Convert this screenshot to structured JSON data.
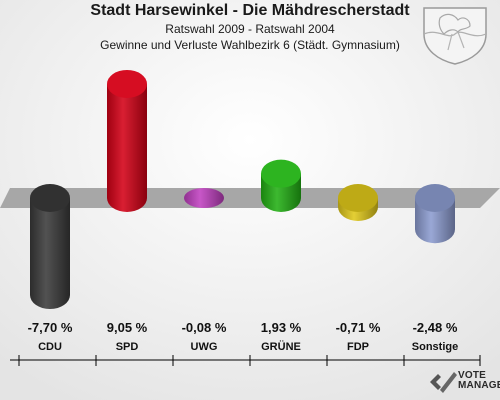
{
  "header": {
    "title": "Stadt Harsewinkel - Die Mähdrescherstadt",
    "subtitle": "Ratswahl 2009 - Ratswahl 2004",
    "description": "Gewinne und Verluste Wahlbezirk 6 (Städt. Gymnasium)"
  },
  "logo": {
    "line1": "VOTE",
    "line2": "MANAGER"
  },
  "chart_data": {
    "type": "bar",
    "title": "Stadt Harsewinkel - Die Mähdrescherstadt",
    "subtitle": "Ratswahl 2009 - Ratswahl 2004",
    "categories": [
      "CDU",
      "SPD",
      "UWG",
      "GRÜNE",
      "FDP",
      "Sonstige"
    ],
    "values": [
      -7.7,
      9.05,
      -0.08,
      1.93,
      -0.71,
      -2.48
    ],
    "labels": [
      "-7,70 %",
      "9,05 %",
      "-0,08 %",
      "1,93 %",
      "-0,71 %",
      "-2,48 %"
    ],
    "colors": [
      "#3a3a3a",
      "#d40016",
      "#c040c0",
      "#22b014",
      "#e0c81a",
      "#8c9cd0"
    ],
    "unit": "%",
    "ylim": [
      -10,
      10
    ],
    "grid": false,
    "legend": "none"
  }
}
